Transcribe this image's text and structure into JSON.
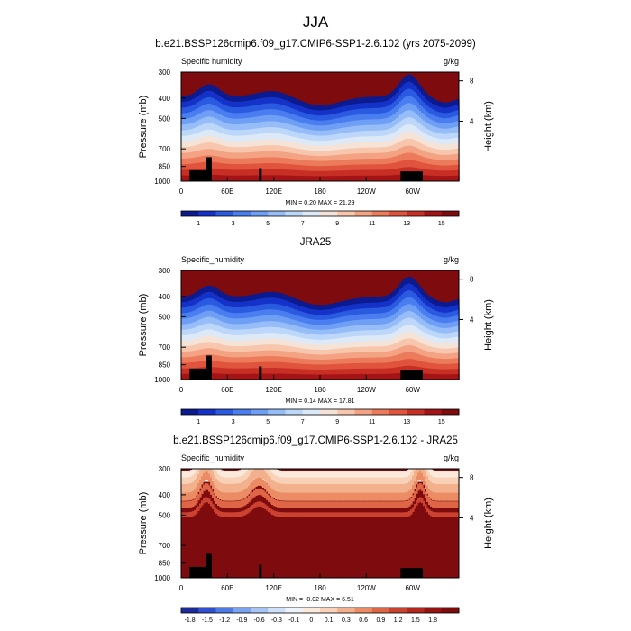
{
  "figure": {
    "season_title": "JJA"
  },
  "colors": {
    "humidity_scale": [
      "#0b1a8f",
      "#1432c8",
      "#2a5ae0",
      "#4a7ef0",
      "#6f9ff5",
      "#97bdf8",
      "#bcd7fa",
      "#dde9f7",
      "#f5e3d8",
      "#f7c6ad",
      "#f3a283",
      "#ec7b5b",
      "#e0533c",
      "#c72e24",
      "#a41316",
      "#7e0b0e"
    ],
    "diff_scale": [
      "#1c2a9a",
      "#2e4fd0",
      "#4d7ae6",
      "#7aa3f0",
      "#a6c5f6",
      "#cfe0f9",
      "#eef3fb",
      "#fbe9dc",
      "#f8d1b7",
      "#f3b08c",
      "#eb8c65",
      "#de6647",
      "#cc4230",
      "#b52620",
      "#951412",
      "#7e0b0e"
    ],
    "land": "#000000"
  },
  "chart_data": [
    {
      "type": "heatmap",
      "title": "b.e21.BSSP126cmip6.f09_g17.CMIP6-SSP1-2.6.102 (yrs 2075-2099)",
      "left_label": "Specific humidity",
      "right_label": "g/kg",
      "ylabel": "Pressure (mb)",
      "ylabel_right": "Height (km)",
      "yticks": [
        "300",
        "400",
        "500",
        "700",
        "850",
        "1000"
      ],
      "yticks_right": [
        "8",
        "4"
      ],
      "xticks": [
        "0",
        "60E",
        "120E",
        "180",
        "120W",
        "60W"
      ],
      "stats": "MIN =   0.20  MAX =  21.29",
      "colorbar_labels": [
        "1",
        "3",
        "5",
        "7",
        "9",
        "11",
        "13",
        "15"
      ]
    },
    {
      "type": "heatmap",
      "title": "JRA25",
      "left_label": "Specific_humidity",
      "right_label": "g/kg",
      "ylabel": "Pressure (mb)",
      "ylabel_right": "Height (km)",
      "yticks": [
        "300",
        "400",
        "500",
        "700",
        "850",
        "1000"
      ],
      "yticks_right": [
        "8",
        "4"
      ],
      "xticks": [
        "0",
        "60E",
        "120E",
        "180",
        "120W",
        "60W"
      ],
      "stats": "MIN =   0.14  MAX =  17.81",
      "colorbar_labels": [
        "1",
        "3",
        "5",
        "7",
        "9",
        "11",
        "13",
        "15"
      ]
    },
    {
      "type": "heatmap",
      "title": "b.e21.BSSP126cmip6.f09_g17.CMIP6-SSP1-2.6.102 - JRA25",
      "left_label": "Specific_humidity",
      "right_label": "g/kg",
      "ylabel": "Pressure (mb)",
      "ylabel_right": "Height (km)",
      "yticks": [
        "300",
        "400",
        "500",
        "700",
        "850",
        "1000"
      ],
      "yticks_right": [
        "8",
        "4"
      ],
      "xticks": [
        "0",
        "60E",
        "120E",
        "180",
        "120W",
        "60W"
      ],
      "stats": "MIN =  -0.02  MAX =   6.51",
      "colorbar_labels": [
        "-1.8",
        "-1.5",
        "-1.2",
        "-0.9",
        "-0.6",
        "-0.3",
        "-0.1",
        "0",
        "0.1",
        "0.3",
        "0.6",
        "0.9",
        "1.2",
        "1.5",
        "1.8"
      ]
    }
  ]
}
